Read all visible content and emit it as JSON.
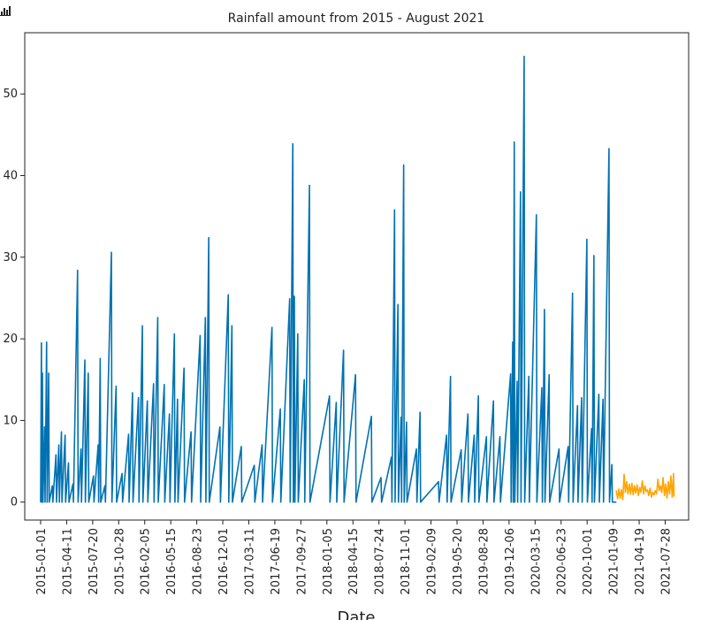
{
  "chart_data": {
    "type": "line",
    "title": "Rainfall amount from 2015 - August 2021",
    "xlabel": "Date",
    "ylabel": "",
    "xlim": [
      "2014-11-01",
      "2021-10-26"
    ],
    "ylim": [
      -2.2,
      57.5
    ],
    "yticks": [
      0,
      10,
      20,
      30,
      40,
      50
    ],
    "xticks": [
      "2015-01-01",
      "2015-04-11",
      "2015-07-20",
      "2015-10-28",
      "2016-02-05",
      "2016-05-15",
      "2016-08-23",
      "2016-12-01",
      "2017-03-11",
      "2017-06-19",
      "2017-09-27",
      "2018-01-05",
      "2018-04-15",
      "2018-07-24",
      "2018-11-01",
      "2019-02-09",
      "2019-05-20",
      "2019-08-28",
      "2019-12-06",
      "2020-03-15",
      "2020-06-23",
      "2020-10-01",
      "2021-01-09",
      "2021-04-19",
      "2021-07-28"
    ],
    "grid": false,
    "series": [
      {
        "color": "#0072b2",
        "points": [
          [
            "2015-01-01",
            0
          ],
          [
            "2015-01-04",
            19.5
          ],
          [
            "2015-01-06",
            0
          ],
          [
            "2015-01-08",
            15.8
          ],
          [
            "2015-01-10",
            0
          ],
          [
            "2015-01-16",
            9.2
          ],
          [
            "2015-01-18",
            0
          ],
          [
            "2015-01-24",
            19.6
          ],
          [
            "2015-01-26",
            0
          ],
          [
            "2015-02-01",
            15.8
          ],
          [
            "2015-02-03",
            0
          ],
          [
            "2015-02-15",
            2
          ],
          [
            "2015-02-17",
            0
          ],
          [
            "2015-03-01",
            5.8
          ],
          [
            "2015-03-03",
            0
          ],
          [
            "2015-03-12",
            7
          ],
          [
            "2015-03-14",
            0
          ],
          [
            "2015-03-22",
            8.6
          ],
          [
            "2015-03-24",
            0
          ],
          [
            "2015-04-05",
            8.2
          ],
          [
            "2015-04-07",
            0
          ],
          [
            "2015-04-18",
            4.8
          ],
          [
            "2015-04-20",
            0
          ],
          [
            "2015-05-05",
            2.2
          ],
          [
            "2015-05-07",
            0
          ],
          [
            "2015-05-23",
            28.4
          ],
          [
            "2015-05-25",
            0
          ],
          [
            "2015-06-05",
            6.5
          ],
          [
            "2015-06-07",
            0
          ],
          [
            "2015-06-20",
            17.4
          ],
          [
            "2015-06-22",
            0
          ],
          [
            "2015-07-03",
            15.8
          ],
          [
            "2015-07-05",
            0
          ],
          [
            "2015-07-23",
            3.2
          ],
          [
            "2015-07-25",
            0
          ],
          [
            "2015-08-10",
            7
          ],
          [
            "2015-08-12",
            0
          ],
          [
            "2015-08-18",
            17.6
          ],
          [
            "2015-08-20",
            0
          ],
          [
            "2015-09-05",
            2
          ],
          [
            "2015-09-07",
            0
          ],
          [
            "2015-09-30",
            30.6
          ],
          [
            "2015-10-02",
            0
          ],
          [
            "2015-10-18",
            14.2
          ],
          [
            "2015-10-20",
            0
          ],
          [
            "2015-11-10",
            3.5
          ],
          [
            "2015-11-12",
            0
          ],
          [
            "2015-12-05",
            8.3
          ],
          [
            "2015-12-07",
            0
          ],
          [
            "2015-12-20",
            13.4
          ],
          [
            "2015-12-22",
            0
          ],
          [
            "2016-01-12",
            12.8
          ],
          [
            "2016-01-14",
            0
          ],
          [
            "2016-01-27",
            21.6
          ],
          [
            "2016-01-29",
            0
          ],
          [
            "2016-02-15",
            12.4
          ],
          [
            "2016-02-17",
            0
          ],
          [
            "2016-03-10",
            14.5
          ],
          [
            "2016-03-12",
            0
          ],
          [
            "2016-03-26",
            22.6
          ],
          [
            "2016-03-28",
            0
          ],
          [
            "2016-04-20",
            14.4
          ],
          [
            "2016-04-22",
            0
          ],
          [
            "2016-05-10",
            10.8
          ],
          [
            "2016-05-12",
            0
          ],
          [
            "2016-05-29",
            20.6
          ],
          [
            "2016-05-31",
            0
          ],
          [
            "2016-06-10",
            12.6
          ],
          [
            "2016-06-12",
            0
          ],
          [
            "2016-07-05",
            16.4
          ],
          [
            "2016-07-07",
            0
          ],
          [
            "2016-08-01",
            8.6
          ],
          [
            "2016-08-03",
            0
          ],
          [
            "2016-09-05",
            20.4
          ],
          [
            "2016-09-07",
            0
          ],
          [
            "2016-09-25",
            22.6
          ],
          [
            "2016-09-27",
            0
          ],
          [
            "2016-10-08",
            32.4
          ],
          [
            "2016-10-10",
            0
          ],
          [
            "2016-11-20",
            9.2
          ],
          [
            "2016-11-22",
            0
          ],
          [
            "2016-12-22",
            25.4
          ],
          [
            "2016-12-24",
            0
          ],
          [
            "2017-01-05",
            21.6
          ],
          [
            "2017-01-07",
            0
          ],
          [
            "2017-02-10",
            6.8
          ],
          [
            "2017-02-12",
            0
          ],
          [
            "2017-04-01",
            4.5
          ],
          [
            "2017-04-03",
            0
          ],
          [
            "2017-05-01",
            7
          ],
          [
            "2017-05-03",
            0
          ],
          [
            "2017-06-08",
            21.4
          ],
          [
            "2017-06-10",
            0
          ],
          [
            "2017-07-10",
            11.4
          ],
          [
            "2017-07-12",
            0
          ],
          [
            "2017-08-15",
            24.9
          ],
          [
            "2017-08-17",
            0
          ],
          [
            "2017-08-27",
            43.9
          ],
          [
            "2017-08-29",
            0
          ],
          [
            "2017-09-02",
            25.2
          ],
          [
            "2017-09-04",
            0
          ],
          [
            "2017-09-15",
            20.6
          ],
          [
            "2017-09-17",
            0
          ],
          [
            "2017-10-10",
            15
          ],
          [
            "2017-10-12",
            0
          ],
          [
            "2017-10-30",
            38.8
          ],
          [
            "2017-11-01",
            0
          ],
          [
            "2018-01-15",
            13
          ],
          [
            "2018-01-17",
            0
          ],
          [
            "2018-02-10",
            12.2
          ],
          [
            "2018-02-12",
            0
          ],
          [
            "2018-03-10",
            18.6
          ],
          [
            "2018-03-12",
            0
          ],
          [
            "2018-04-25",
            15.6
          ],
          [
            "2018-04-27",
            0
          ],
          [
            "2018-06-25",
            10.5
          ],
          [
            "2018-06-27",
            0
          ],
          [
            "2018-08-01",
            3
          ],
          [
            "2018-08-03",
            0
          ],
          [
            "2018-09-10",
            5.5
          ],
          [
            "2018-09-12",
            0
          ],
          [
            "2018-09-22",
            35.8
          ],
          [
            "2018-09-24",
            0
          ],
          [
            "2018-10-05",
            24.2
          ],
          [
            "2018-10-07",
            0
          ],
          [
            "2018-10-17",
            10.4
          ],
          [
            "2018-10-19",
            0
          ],
          [
            "2018-10-27",
            41.3
          ],
          [
            "2018-10-29",
            0
          ],
          [
            "2018-11-07",
            9.8
          ],
          [
            "2018-11-09",
            0
          ],
          [
            "2018-12-15",
            6.5
          ],
          [
            "2018-12-17",
            0
          ],
          [
            "2018-12-29",
            11
          ],
          [
            "2018-12-31",
            0
          ],
          [
            "2019-03-10",
            2.5
          ],
          [
            "2019-03-12",
            0
          ],
          [
            "2019-04-10",
            8.2
          ],
          [
            "2019-04-12",
            0
          ],
          [
            "2019-04-25",
            15.4
          ],
          [
            "2019-04-27",
            0
          ],
          [
            "2019-06-05",
            6.4
          ],
          [
            "2019-06-07",
            0
          ],
          [
            "2019-07-01",
            10.8
          ],
          [
            "2019-07-03",
            0
          ],
          [
            "2019-07-25",
            8.2
          ],
          [
            "2019-07-27",
            0
          ],
          [
            "2019-08-10",
            13
          ],
          [
            "2019-08-12",
            0
          ],
          [
            "2019-09-10",
            8
          ],
          [
            "2019-09-12",
            0
          ],
          [
            "2019-10-07",
            12.4
          ],
          [
            "2019-10-09",
            0
          ],
          [
            "2019-11-01",
            8
          ],
          [
            "2019-11-03",
            0
          ],
          [
            "2019-12-12",
            15.7
          ],
          [
            "2019-12-14",
            0
          ],
          [
            "2019-12-20",
            19.6
          ],
          [
            "2019-12-22",
            0
          ],
          [
            "2019-12-26",
            44.1
          ],
          [
            "2019-12-28",
            0
          ],
          [
            "2020-01-06",
            14.8
          ],
          [
            "2020-01-08",
            0
          ],
          [
            "2020-01-19",
            38
          ],
          [
            "2020-01-21",
            0
          ],
          [
            "2020-02-02",
            54.6
          ],
          [
            "2020-02-04",
            0
          ],
          [
            "2020-02-20",
            15.4
          ],
          [
            "2020-02-22",
            0
          ],
          [
            "2020-03-20",
            35.2
          ],
          [
            "2020-03-22",
            0
          ],
          [
            "2020-04-10",
            14
          ],
          [
            "2020-04-12",
            0
          ],
          [
            "2020-04-20",
            23.6
          ],
          [
            "2020-04-22",
            0
          ],
          [
            "2020-05-08",
            15.6
          ],
          [
            "2020-05-10",
            0
          ],
          [
            "2020-06-15",
            6.5
          ],
          [
            "2020-06-17",
            0
          ],
          [
            "2020-07-20",
            6.8
          ],
          [
            "2020-07-22",
            0
          ],
          [
            "2020-08-06",
            25.6
          ],
          [
            "2020-08-08",
            0
          ],
          [
            "2020-08-25",
            11.8
          ],
          [
            "2020-08-27",
            0
          ],
          [
            "2020-09-10",
            12.8
          ],
          [
            "2020-09-12",
            0
          ],
          [
            "2020-09-30",
            32.2
          ],
          [
            "2020-10-02",
            0
          ],
          [
            "2020-10-18",
            9
          ],
          [
            "2020-10-20",
            0
          ],
          [
            "2020-10-27",
            30.2
          ],
          [
            "2020-10-29",
            0
          ],
          [
            "2020-11-15",
            13.2
          ],
          [
            "2020-11-17",
            0
          ],
          [
            "2020-12-01",
            12.6
          ],
          [
            "2020-12-03",
            0
          ],
          [
            "2020-12-24",
            43.3
          ],
          [
            "2020-12-26",
            0
          ],
          [
            "2021-01-04",
            4.6
          ],
          [
            "2021-01-06",
            0
          ],
          [
            "2021-01-20",
            0
          ]
        ]
      },
      {
        "color": "#ffa500",
        "points": [
          [
            "2021-01-21",
            1.4
          ],
          [
            "2021-01-26",
            0.4
          ],
          [
            "2021-01-31",
            1.6
          ],
          [
            "2021-02-05",
            0.5
          ],
          [
            "2021-02-10",
            1.5
          ],
          [
            "2021-02-15",
            0.3
          ],
          [
            "2021-02-20",
            3.4
          ],
          [
            "2021-02-25",
            1.2
          ],
          [
            "2021-03-02",
            2.5
          ],
          [
            "2021-03-07",
            1
          ],
          [
            "2021-03-12",
            2.2
          ],
          [
            "2021-03-17",
            1
          ],
          [
            "2021-03-22",
            2.3
          ],
          [
            "2021-03-27",
            0.9
          ],
          [
            "2021-04-01",
            2
          ],
          [
            "2021-04-06",
            1.1
          ],
          [
            "2021-04-11",
            2.1
          ],
          [
            "2021-04-16",
            0.8
          ],
          [
            "2021-04-21",
            1.8
          ],
          [
            "2021-04-26",
            1.2
          ],
          [
            "2021-05-01",
            2.6
          ],
          [
            "2021-05-06",
            1
          ],
          [
            "2021-05-11",
            2
          ],
          [
            "2021-05-16",
            1.3
          ],
          [
            "2021-05-21",
            1.5
          ],
          [
            "2021-05-26",
            0.8
          ],
          [
            "2021-05-31",
            1.7
          ],
          [
            "2021-06-05",
            0.6
          ],
          [
            "2021-06-10",
            1.2
          ],
          [
            "2021-06-15",
            0.9
          ],
          [
            "2021-06-20",
            1.4
          ],
          [
            "2021-06-25",
            1
          ],
          [
            "2021-06-30",
            2.8
          ],
          [
            "2021-07-05",
            1.4
          ],
          [
            "2021-07-10",
            2
          ],
          [
            "2021-07-15",
            1.2
          ],
          [
            "2021-07-20",
            3
          ],
          [
            "2021-07-25",
            0.8
          ],
          [
            "2021-07-30",
            2.2
          ],
          [
            "2021-08-04",
            0.5
          ],
          [
            "2021-08-09",
            2.5
          ],
          [
            "2021-08-14",
            1
          ],
          [
            "2021-08-19",
            3.2
          ],
          [
            "2021-08-24",
            0.6
          ],
          [
            "2021-08-29",
            3.5
          ],
          [
            "2021-08-31",
            0.7
          ]
        ]
      }
    ]
  }
}
